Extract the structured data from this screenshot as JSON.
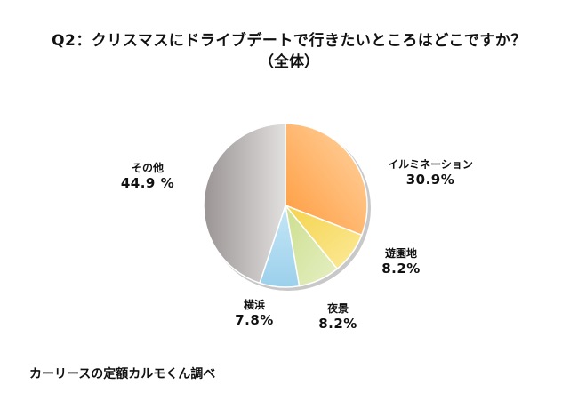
{
  "title": "Q2：クリスマスにドライブデートで行きたいところはどこですか？",
  "subtitle": "（全体）",
  "source": "カーリースの定額カルモくん調べ",
  "chart_data": {
    "type": "pie",
    "title": "Q2：クリスマスにドライブデートで行きたいところはどこですか？（全体）",
    "categories": [
      "イルミネーション",
      "遊園地",
      "夜景",
      "横浜",
      "その他"
    ],
    "values": [
      30.9,
      8.2,
      8.2,
      7.8,
      44.9
    ],
    "unit": "%",
    "start_angle": "12 o'clock, clockwise",
    "colors": [
      "#FFA64D",
      "#F7DA5E",
      "#D4E39E",
      "#A9D7EE",
      "#B7B2B2"
    ],
    "legend": "none (labels outside slices)"
  },
  "labels": [
    {
      "name": "イルミネーション",
      "value": "30.9%"
    },
    {
      "name": "遊園地",
      "value": "8.2%"
    },
    {
      "name": "夜景",
      "value": "8.2%"
    },
    {
      "name": "横浜",
      "value": "7.8%"
    },
    {
      "name": "その他",
      "value": "44.9 %"
    }
  ]
}
